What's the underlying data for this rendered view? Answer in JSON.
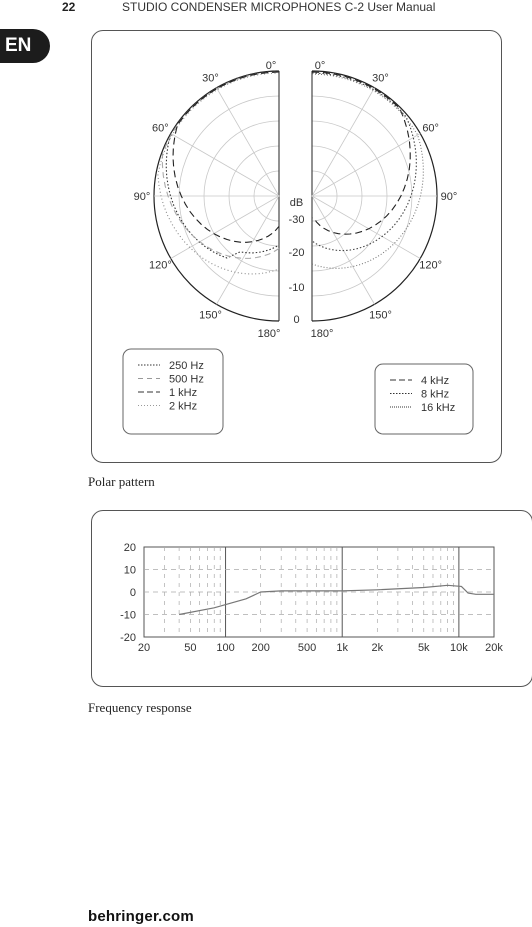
{
  "header": {
    "page_number": "22",
    "title": "STUDIO CONDENSER MICROPHONES C-2 User Manual"
  },
  "language_tab": "EN",
  "polar": {
    "caption": "Polar pattern",
    "angle_labels_left": [
      "0°",
      "30°",
      "60°",
      "90°",
      "120°",
      "150°",
      "180°"
    ],
    "angle_labels_right": [
      "0°",
      "30°",
      "60°",
      "90°",
      "120°",
      "150°",
      "180°"
    ],
    "db_unit": "dB",
    "db_labels": [
      "-30",
      "-20",
      "-10",
      "0"
    ],
    "legend_left": [
      {
        "label": "250 Hz",
        "style": "dotted"
      },
      {
        "label": "500 Hz",
        "style": "long-dash-light"
      },
      {
        "label": "1 kHz",
        "style": "dashed"
      },
      {
        "label": "2 kHz",
        "style": "dotted-light"
      }
    ],
    "legend_right": [
      {
        "label": "4 kHz",
        "style": "dashed"
      },
      {
        "label": "8 kHz",
        "style": "dotted"
      },
      {
        "label": "16  kHz",
        "style": "dotted-dense"
      }
    ]
  },
  "frequency_response": {
    "caption": "Frequency response",
    "chart_data": {
      "type": "line",
      "x_scale": "log",
      "x_ticks": [
        20,
        50,
        100,
        200,
        500,
        1000,
        2000,
        5000,
        10000,
        20000
      ],
      "x_tick_labels": [
        "20",
        "50",
        "100",
        "200",
        "500",
        "1k",
        "2k",
        "5k",
        "10k",
        "20k"
      ],
      "y_ticks": [
        20,
        10,
        0,
        -10,
        -20
      ],
      "y_tick_labels": [
        "20",
        "10",
        "0",
        "-10",
        "-20"
      ],
      "ylim": [
        -20,
        20
      ],
      "xlim": [
        20,
        20000
      ],
      "grid": true,
      "series": [
        {
          "x": [
            40,
            80,
            150,
            200,
            300,
            500,
            1000,
            2000,
            5000,
            8000,
            10500,
            12000,
            14000,
            20000
          ],
          "y": [
            -10,
            -7,
            -3,
            0,
            0.5,
            0.5,
            0.5,
            1,
            2,
            3,
            2.5,
            -0.5,
            -1,
            -1
          ]
        }
      ]
    }
  },
  "footer": {
    "logo": "behringer.com"
  }
}
